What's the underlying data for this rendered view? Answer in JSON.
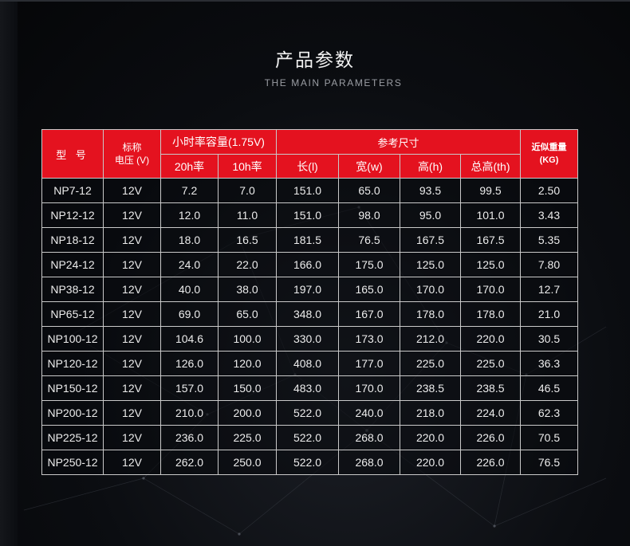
{
  "title": "产品参数",
  "subtitle": "THE MAIN PARAMETERS",
  "table": {
    "header": {
      "model": "型 号",
      "voltage_line1": "标称",
      "voltage_line2": "电压 (V)",
      "capacity": "小时率容量(1.75V)",
      "dimensions": "参考尺寸",
      "weight_line1": "近似重量",
      "weight_line2": "(KG)",
      "rate20": "20h率",
      "rate10": "10h率",
      "length": "长(l)",
      "width": "宽(w)",
      "height": "高(h)",
      "total_height": "总高(th)"
    },
    "rows": [
      [
        "NP7-12",
        "12V",
        "7.2",
        "7.0",
        "151.0",
        "65.0",
        "93.5",
        "99.5",
        "2.50"
      ],
      [
        "NP12-12",
        "12V",
        "12.0",
        "11.0",
        "151.0",
        "98.0",
        "95.0",
        "101.0",
        "3.43"
      ],
      [
        "NP18-12",
        "12V",
        "18.0",
        "16.5",
        "181.5",
        "76.5",
        "167.5",
        "167.5",
        "5.35"
      ],
      [
        "NP24-12",
        "12V",
        "24.0",
        "22.0",
        "166.0",
        "175.0",
        "125.0",
        "125.0",
        "7.80"
      ],
      [
        "NP38-12",
        "12V",
        "40.0",
        "38.0",
        "197.0",
        "165.0",
        "170.0",
        "170.0",
        "12.7"
      ],
      [
        "NP65-12",
        "12V",
        "69.0",
        "65.0",
        "348.0",
        "167.0",
        "178.0",
        "178.0",
        "21.0"
      ],
      [
        "NP100-12",
        "12V",
        "104.6",
        "100.0",
        "330.0",
        "173.0",
        "212.0",
        "220.0",
        "30.5"
      ],
      [
        "NP120-12",
        "12V",
        "126.0",
        "120.0",
        "408.0",
        "177.0",
        "225.0",
        "225.0",
        "36.3"
      ],
      [
        "NP150-12",
        "12V",
        "157.0",
        "150.0",
        "483.0",
        "170.0",
        "238.5",
        "238.5",
        "46.5"
      ],
      [
        "NP200-12",
        "12V",
        "210.0",
        "200.0",
        "522.0",
        "240.0",
        "218.0",
        "224.0",
        "62.3"
      ],
      [
        "NP225-12",
        "12V",
        "236.0",
        "225.0",
        "522.0",
        "268.0",
        "220.0",
        "226.0",
        "70.5"
      ],
      [
        "NP250-12",
        "12V",
        "262.0",
        "250.0",
        "522.0",
        "268.0",
        "220.0",
        "226.0",
        "76.5"
      ]
    ]
  },
  "colors": {
    "header_red": "#e4121f",
    "background": "#0b0d11",
    "border": "#c9c9c9"
  }
}
